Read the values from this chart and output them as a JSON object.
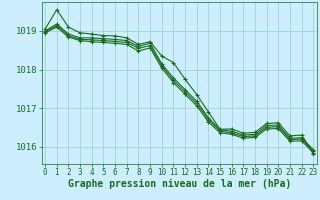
{
  "x": [
    0,
    1,
    2,
    3,
    4,
    5,
    6,
    7,
    8,
    9,
    10,
    11,
    12,
    13,
    14,
    15,
    16,
    17,
    18,
    19,
    20,
    21,
    22,
    23
  ],
  "lines": [
    [
      1019.05,
      1019.55,
      1019.1,
      1018.95,
      1018.92,
      1018.88,
      1018.87,
      1018.82,
      1018.65,
      1018.72,
      1018.35,
      1018.18,
      1017.75,
      1017.35,
      1016.9,
      1016.45,
      1016.46,
      1016.35,
      1016.37,
      1016.6,
      1016.62,
      1016.28,
      1016.3,
      1015.82
    ],
    [
      1019.0,
      1019.18,
      1018.92,
      1018.82,
      1018.82,
      1018.8,
      1018.78,
      1018.75,
      1018.6,
      1018.68,
      1018.15,
      1017.78,
      1017.48,
      1017.18,
      1016.75,
      1016.44,
      1016.4,
      1016.3,
      1016.32,
      1016.55,
      1016.56,
      1016.22,
      1016.23,
      1015.92
    ],
    [
      1018.98,
      1019.14,
      1018.88,
      1018.78,
      1018.77,
      1018.75,
      1018.73,
      1018.7,
      1018.55,
      1018.62,
      1018.1,
      1017.72,
      1017.42,
      1017.12,
      1016.7,
      1016.4,
      1016.36,
      1016.26,
      1016.28,
      1016.5,
      1016.52,
      1016.18,
      1016.2,
      1015.88
    ],
    [
      1018.95,
      1019.1,
      1018.84,
      1018.75,
      1018.72,
      1018.7,
      1018.68,
      1018.65,
      1018.48,
      1018.56,
      1018.04,
      1017.66,
      1017.36,
      1017.06,
      1016.64,
      1016.36,
      1016.32,
      1016.22,
      1016.24,
      1016.46,
      1016.47,
      1016.14,
      1016.15,
      1015.84
    ]
  ],
  "line_color": "#1a6b1a",
  "marker": "+",
  "marker_size": 3,
  "marker_edge_width": 0.8,
  "ylim": [
    1015.55,
    1019.75
  ],
  "yticks": [
    1016,
    1017,
    1018,
    1019
  ],
  "xticks": [
    0,
    1,
    2,
    3,
    4,
    5,
    6,
    7,
    8,
    9,
    10,
    11,
    12,
    13,
    14,
    15,
    16,
    17,
    18,
    19,
    20,
    21,
    22,
    23
  ],
  "xlabel": "Graphe pression niveau de la mer (hPa)",
  "xlabel_fontsize": 7,
  "xlabel_fontweight": "bold",
  "xlabel_color": "#1a6b1a",
  "background_color": "#cceeff",
  "grid_color": "#99cccc",
  "tick_color": "#1a6b1a",
  "ytick_fontsize": 6.5,
  "xtick_fontsize": 5.5,
  "line_width": 0.8
}
